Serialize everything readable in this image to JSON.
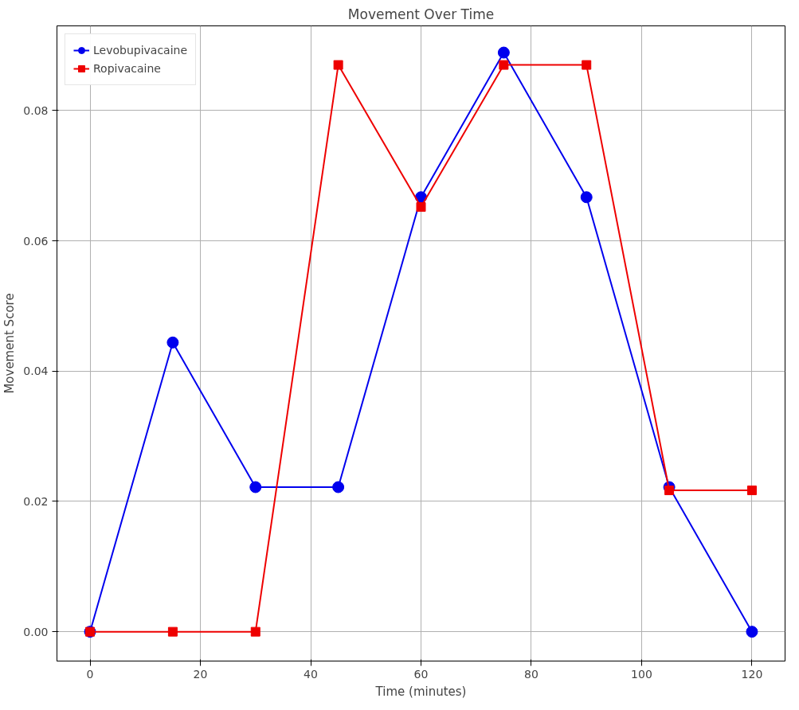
{
  "chart_data": {
    "type": "line",
    "title": "Movement Over Time",
    "xlabel": "Time (minutes)",
    "ylabel": "Movement Score",
    "x": [
      0,
      15,
      30,
      45,
      60,
      75,
      90,
      105,
      120
    ],
    "series": [
      {
        "name": "Levobupivacaine",
        "color": "#0000ee",
        "marker": "circle",
        "values": [
          0,
          0.0444,
          0.0222,
          0.0222,
          0.0667,
          0.0889,
          0.0667,
          0.0222,
          0
        ]
      },
      {
        "name": "Ropivacaine",
        "color": "#ee0000",
        "marker": "square",
        "values": [
          0,
          0,
          0,
          0.087,
          0.0652,
          0.087,
          0.087,
          0.0217,
          0.0217
        ]
      }
    ],
    "xlim": [
      -6,
      126
    ],
    "ylim": [
      -0.0045,
      0.093
    ],
    "xticks": [
      0,
      20,
      40,
      60,
      80,
      100,
      120
    ],
    "yticks": [
      {
        "value": 0,
        "label": "0.00"
      },
      {
        "value": 0.02,
        "label": "0.02"
      },
      {
        "value": 0.04,
        "label": "0.04"
      },
      {
        "value": 0.06,
        "label": "0.06"
      },
      {
        "value": 0.08,
        "label": "0.08"
      }
    ],
    "grid": true,
    "legend": "top left",
    "line_style": "solid"
  }
}
